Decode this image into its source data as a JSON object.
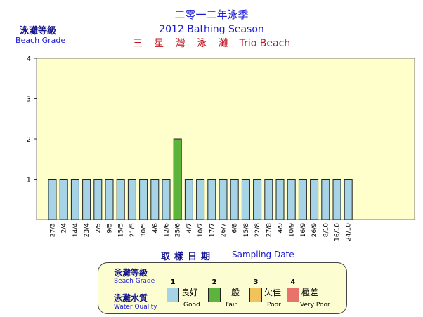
{
  "header": {
    "title_cn": "二零一二年泳季",
    "title_en": "2012 Bathing Season",
    "beach_cn": "三 星 灣 泳 灘",
    "beach_en": "Trio Beach"
  },
  "yaxis": {
    "label_cn": "泳灘等級",
    "label_en": "Beach Grade"
  },
  "xaxis": {
    "label_cn": "取樣日期",
    "label_en": "Sampling Date"
  },
  "legend": {
    "grade_cn": "泳灘等級",
    "grade_en": "Beach Grade",
    "quality_cn": "泳灘水質",
    "quality_en": "Water Quality",
    "items": [
      {
        "grade": "1",
        "cn": "良好",
        "en": "Good",
        "color": "#a6d4e6"
      },
      {
        "grade": "2",
        "cn": "一般",
        "en": "Fair",
        "color": "#5db43a"
      },
      {
        "grade": "3",
        "cn": "欠佳",
        "en": "Poor",
        "color": "#f0c45a"
      },
      {
        "grade": "4",
        "cn": "極差",
        "en": "Very Poor",
        "color": "#e8736a"
      }
    ]
  },
  "chart_data": {
    "type": "bar",
    "categories": [
      "27/3",
      "2/4",
      "14/4",
      "23/4",
      "2/5",
      "9/5",
      "15/5",
      "21/5",
      "30/5",
      "4/6",
      "12/6",
      "25/6",
      "4/7",
      "10/7",
      "17/7",
      "26/7",
      "6/8",
      "15/8",
      "22/8",
      "27/8",
      "4/9",
      "10/9",
      "16/9",
      "26/9",
      "8/10",
      "16/10",
      "24/10"
    ],
    "values": [
      1,
      1,
      1,
      1,
      1,
      1,
      1,
      1,
      1,
      1,
      1,
      2,
      1,
      1,
      1,
      1,
      1,
      1,
      1,
      1,
      1,
      1,
      1,
      1,
      1,
      1,
      1
    ],
    "ylim": [
      0,
      4
    ],
    "yticks": [
      1,
      2,
      3,
      4
    ],
    "xlabel": "Sampling Date",
    "ylabel": "Beach Grade",
    "grid": false,
    "plot_background": "#ffffcc",
    "grade_colors": {
      "1": "#a6d4e6",
      "2": "#5db43a",
      "3": "#f0c45a",
      "4": "#e8736a"
    }
  }
}
